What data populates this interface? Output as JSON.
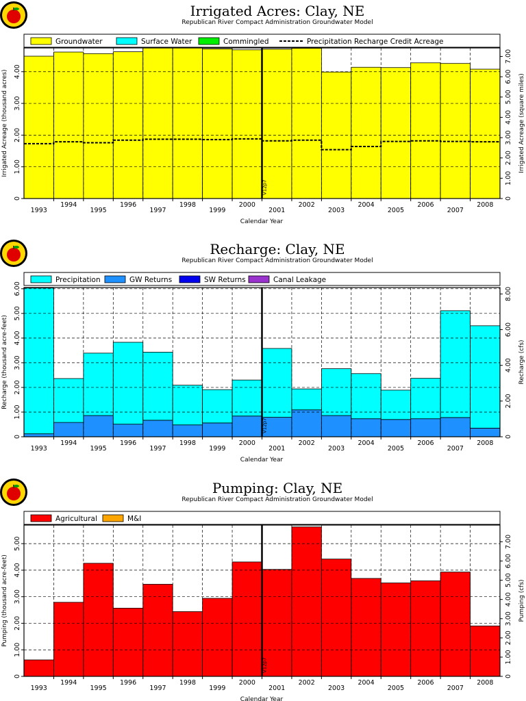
{
  "charts": [
    {
      "title": "Irrigated Acres: Clay, NE",
      "subtitle": "Republican River Compact Administration Groundwater Model",
      "xlabel": "Calendar Year",
      "ylabel_left": "Irrigated Acreage (thousand acres)",
      "ylabel_right": "Irrigated Acreage (square miles)",
      "vline_label": "V12p7"
    },
    {
      "title": "Recharge: Clay, NE",
      "subtitle": "Republican River Compact Administration Groundwater Model",
      "xlabel": "Calendar Year",
      "ylabel_left": "Recharge (thousand acre-feet)",
      "ylabel_right": "Recharge (cfs)",
      "vline_label": "V12p7"
    },
    {
      "title": "Pumping: Clay, NE",
      "subtitle": "Republican River Compact Administration Groundwater Model",
      "xlabel": "Calendar Year",
      "ylabel_left": "Pumping (thousand acre-feet)",
      "ylabel_right": "Pumping (cfs)",
      "vline_label": "V12p7"
    }
  ],
  "chart_data": [
    {
      "type": "area",
      "title": "Irrigated Acres: Clay, NE",
      "subtitle": "Republican River Compact Administration Groundwater Model",
      "xlabel": "Calendar Year",
      "ylabel": "Irrigated Acreage (thousand acres)",
      "y2label": "Irrigated Acreage (square miles)",
      "categories": [
        "1993",
        "1994",
        "1995",
        "1996",
        "1997",
        "1998",
        "1999",
        "2000",
        "2001",
        "2002",
        "2003",
        "2004",
        "2005",
        "2006",
        "2007",
        "2008"
      ],
      "ylim": [
        0,
        4.75
      ],
      "yticks": [
        0,
        1.0,
        2.0,
        3.0,
        4.0
      ],
      "ytick_labels": [
        "0",
        "1.00",
        "2.00",
        "3.00",
        "4.00"
      ],
      "y2lim": [
        0,
        7.42
      ],
      "y2ticks": [
        0,
        1.0,
        2.0,
        3.0,
        4.0,
        5.0,
        6.0,
        7.0
      ],
      "y2tick_labels": [
        "0",
        "1.00",
        "2.00",
        "3.00",
        "4.00",
        "5.00",
        "6.00",
        "7.00"
      ],
      "vline_at": 2000.5,
      "series": [
        {
          "name": "Groundwater",
          "color": "#ffff00",
          "values": [
            4.49,
            4.62,
            4.57,
            4.63,
            4.77,
            4.76,
            4.72,
            4.69,
            4.71,
            4.74,
            3.99,
            4.14,
            4.13,
            4.28,
            4.26,
            4.08
          ]
        },
        {
          "name": "Surface Water",
          "color": "#00ffff",
          "values": [
            0,
            0,
            0,
            0,
            0,
            0,
            0,
            0,
            0,
            0,
            0,
            0,
            0,
            0,
            0,
            0
          ]
        },
        {
          "name": "Commingled",
          "color": "#00ee00",
          "values": [
            0,
            0,
            0,
            0,
            0,
            0,
            0,
            0,
            0,
            0,
            0,
            0,
            0,
            0,
            0,
            0
          ]
        }
      ],
      "line_series": [
        {
          "name": "Precipitation Recharge Credit Acreage",
          "style": "dashed",
          "values": [
            1.73,
            1.79,
            1.76,
            1.84,
            1.87,
            1.87,
            1.86,
            1.88,
            1.82,
            1.84,
            1.54,
            1.64,
            1.8,
            1.82,
            1.8,
            1.79
          ]
        }
      ],
      "grid": true,
      "legend": "top"
    },
    {
      "type": "area",
      "title": "Recharge: Clay, NE",
      "subtitle": "Republican River Compact Administration Groundwater Model",
      "xlabel": "Calendar Year",
      "ylabel": "Recharge (thousand acre-feet)",
      "y2label": "Recharge (cfs)",
      "categories": [
        "1993",
        "1994",
        "1995",
        "1996",
        "1997",
        "1998",
        "1999",
        "2000",
        "2001",
        "2002",
        "2003",
        "2004",
        "2005",
        "2006",
        "2007",
        "2008"
      ],
      "ylim": [
        0,
        6.05
      ],
      "yticks": [
        0,
        1.0,
        2.0,
        3.0,
        4.0,
        5.0,
        6.0
      ],
      "ytick_labels": [
        "0",
        "1.00",
        "2.00",
        "3.00",
        "4.00",
        "5.00",
        "6.00"
      ],
      "y2lim": [
        0,
        8.36
      ],
      "y2ticks": [
        0,
        2.0,
        4.0,
        6.0,
        8.0
      ],
      "y2tick_labels": [
        "0",
        "2.00",
        "4.00",
        "6.00",
        "8.00"
      ],
      "vline_at": 2000.5,
      "series": [
        {
          "name": "GW Returns",
          "color": "#1e90ff",
          "values": [
            0.12,
            0.58,
            0.86,
            0.51,
            0.67,
            0.48,
            0.56,
            0.84,
            0.79,
            1.09,
            0.86,
            0.73,
            0.7,
            0.73,
            0.78,
            0.35
          ]
        },
        {
          "name": "Precipitation",
          "color": "#00ffff",
          "values": [
            5.91,
            1.78,
            2.53,
            3.32,
            2.76,
            1.61,
            1.35,
            1.46,
            2.79,
            0.85,
            1.9,
            1.83,
            1.19,
            1.64,
            4.33,
            4.15
          ]
        },
        {
          "name": "SW Returns",
          "color": "#0000ee",
          "values": [
            0,
            0,
            0,
            0,
            0,
            0,
            0,
            0,
            0,
            0,
            0,
            0,
            0,
            0,
            0,
            0
          ]
        },
        {
          "name": "Canal Leakage",
          "color": "#9a32cd",
          "values": [
            0,
            0,
            0,
            0,
            0,
            0,
            0,
            0,
            0,
            0,
            0,
            0,
            0,
            0,
            0,
            0
          ]
        }
      ],
      "legend_order": [
        "Precipitation",
        "GW Returns",
        "SW Returns",
        "Canal Leakage"
      ],
      "grid": true,
      "legend": "top"
    },
    {
      "type": "area",
      "title": "Pumping: Clay, NE",
      "subtitle": "Republican River Compact Administration Groundwater Model",
      "xlabel": "Calendar Year",
      "ylabel": "Pumping (thousand acre-feet)",
      "y2label": "Pumping (cfs)",
      "categories": [
        "1993",
        "1994",
        "1995",
        "1996",
        "1997",
        "1998",
        "1999",
        "2000",
        "2001",
        "2002",
        "2003",
        "2004",
        "2005",
        "2006",
        "2007",
        "2008"
      ],
      "ylim": [
        0,
        5.7
      ],
      "yticks": [
        0,
        1.0,
        2.0,
        3.0,
        4.0,
        5.0
      ],
      "ytick_labels": [
        "0",
        "1.00",
        "2.00",
        "3.00",
        "4.00",
        "5.00"
      ],
      "y2lim": [
        0,
        7.87
      ],
      "y2ticks": [
        0,
        1.0,
        2.0,
        3.0,
        4.0,
        5.0,
        6.0,
        7.0
      ],
      "y2tick_labels": [
        "0",
        "1.00",
        "2.00",
        "3.00",
        "4.00",
        "5.00",
        "6.00",
        "7.00"
      ],
      "vline_at": 2000.5,
      "series": [
        {
          "name": "Agricultural",
          "color": "#ff0000",
          "values": [
            0.62,
            2.79,
            4.26,
            2.57,
            3.47,
            2.44,
            2.94,
            4.31,
            4.03,
            5.63,
            4.42,
            3.69,
            3.52,
            3.6,
            3.93,
            1.9
          ]
        },
        {
          "name": "M&I",
          "color": "#ffa500",
          "values": [
            0,
            0,
            0,
            0,
            0,
            0,
            0,
            0,
            0,
            0,
            0,
            0,
            0,
            0,
            0,
            0
          ]
        }
      ],
      "grid": true,
      "legend": "top"
    }
  ]
}
